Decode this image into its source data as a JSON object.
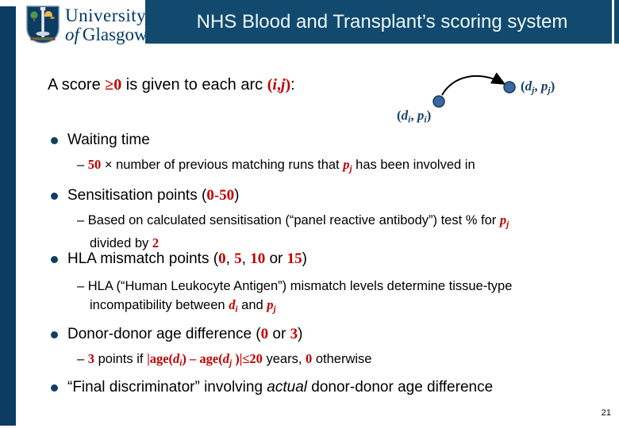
{
  "colors": {
    "sidebar_navy": "#0d3c63",
    "header_navy": "#114a6e",
    "accent_red": "#c00000",
    "diagram_navy": "#17426d",
    "node_fill": "#39679e"
  },
  "logo": {
    "line1": "University",
    "line2_of": "of",
    "line2_rest": "Glasgow"
  },
  "header": {
    "title": "NHS Blood and Transplant’s scoring system"
  },
  "heading": {
    "segments": [
      {
        "t": "A score ",
        "c": "k"
      },
      {
        "t": "≥0",
        "c": "rbs"
      },
      {
        "t": " is given to each arc ",
        "c": "k"
      },
      {
        "t": "(",
        "c": "rbs"
      },
      {
        "t": "i",
        "c": "rbis"
      },
      {
        "t": ",",
        "c": "rbs"
      },
      {
        "t": "j",
        "c": "rbis"
      },
      {
        "t": ")",
        "c": "rbs"
      },
      {
        "t": ":",
        "c": "k"
      }
    ]
  },
  "diagram": {
    "label_left": [
      {
        "t": "(",
        "c": "nbs"
      },
      {
        "t": "d",
        "c": "nbis"
      },
      {
        "t": "i",
        "c": "nbis sb"
      },
      {
        "t": ", ",
        "c": "nbs"
      },
      {
        "t": "p",
        "c": "nbis"
      },
      {
        "t": "i",
        "c": "nbis sb"
      },
      {
        "t": ")",
        "c": "nbs"
      }
    ],
    "label_right": [
      {
        "t": "(",
        "c": "nbs"
      },
      {
        "t": "d",
        "c": "nbis"
      },
      {
        "t": "j",
        "c": "nbis sb"
      },
      {
        "t": ", ",
        "c": "nbs"
      },
      {
        "t": "p",
        "c": "nbis"
      },
      {
        "t": "j",
        "c": "nbis sb"
      },
      {
        "t": ")",
        "c": "nbs"
      }
    ]
  },
  "bullets": [
    {
      "main": [
        {
          "t": "Waiting time",
          "c": "k"
        }
      ],
      "subs": [
        [
          {
            "t": "– ",
            "c": "k"
          },
          {
            "t": "50",
            "c": "rbs"
          },
          {
            "t": " × number of previous matching runs that ",
            "c": "k"
          },
          {
            "t": "p",
            "c": "rbis"
          },
          {
            "t": "j",
            "c": "rbis sb"
          },
          {
            "t": " has been involved in",
            "c": "k"
          }
        ]
      ]
    },
    {
      "main": [
        {
          "t": "Sensitisation points (",
          "c": "k"
        },
        {
          "t": "0-50",
          "c": "rbs"
        },
        {
          "t": ")",
          "c": "k"
        }
      ],
      "subs": [
        [
          {
            "t": "– Based on calculated sensitisation (“panel reactive antibody”) test % for ",
            "c": "k"
          },
          {
            "t": "p",
            "c": "rbis"
          },
          {
            "t": "j",
            "c": "rbis sb"
          },
          {
            "br": true
          },
          {
            "t": "divided by ",
            "c": "k"
          },
          {
            "t": "2",
            "c": "rbs"
          }
        ]
      ]
    },
    {
      "main": [
        {
          "t": "HLA mismatch points (",
          "c": "k"
        },
        {
          "t": "0",
          "c": "rbs"
        },
        {
          "t": ", ",
          "c": "k"
        },
        {
          "t": "5",
          "c": "rbs"
        },
        {
          "t": ", ",
          "c": "k"
        },
        {
          "t": "10",
          "c": "rbs"
        },
        {
          "t": " or ",
          "c": "k"
        },
        {
          "t": "15",
          "c": "rbs"
        },
        {
          "t": ")",
          "c": "k"
        }
      ],
      "subs": [
        [
          {
            "t": "– HLA (“Human Leukocyte Antigen”) mismatch levels determine tissue-type",
            "c": "k"
          },
          {
            "br": true
          },
          {
            "t": "incompatibility between ",
            "c": "k"
          },
          {
            "t": "d",
            "c": "rbis"
          },
          {
            "t": "i",
            "c": "rbis sb"
          },
          {
            "t": " and ",
            "c": "k"
          },
          {
            "t": "p",
            "c": "rbis"
          },
          {
            "t": "j",
            "c": "rbis sb"
          }
        ]
      ]
    },
    {
      "main": [
        {
          "t": "Donor-donor age difference (",
          "c": "k"
        },
        {
          "t": "0",
          "c": "rbs"
        },
        {
          "t": " or ",
          "c": "k"
        },
        {
          "t": "3",
          "c": "rbs"
        },
        {
          "t": ")",
          "c": "k"
        }
      ],
      "subs": [
        [
          {
            "t": "– ",
            "c": "k"
          },
          {
            "t": "3",
            "c": "rbs"
          },
          {
            "t": " points if ",
            "c": "k"
          },
          {
            "t": "|age(",
            "c": "rbs"
          },
          {
            "t": "d",
            "c": "rbis"
          },
          {
            "t": "i",
            "c": "rbis sb"
          },
          {
            "t": ") – age(",
            "c": "rbs"
          },
          {
            "t": "d",
            "c": "rbis"
          },
          {
            "t": "j",
            "c": "rbis sb"
          },
          {
            "t": " )|≤20",
            "c": "rbs"
          },
          {
            "t": " years, ",
            "c": "k"
          },
          {
            "t": "0",
            "c": "rbs"
          },
          {
            "t": " otherwise",
            "c": "k"
          }
        ]
      ]
    },
    {
      "main": [
        {
          "t": "“Final discriminator” involving ",
          "c": "k"
        },
        {
          "t": "actual",
          "c": "it"
        },
        {
          "t": " donor-donor age difference",
          "c": "k"
        }
      ],
      "subs": []
    }
  ],
  "footer": {
    "page_number": "21"
  }
}
